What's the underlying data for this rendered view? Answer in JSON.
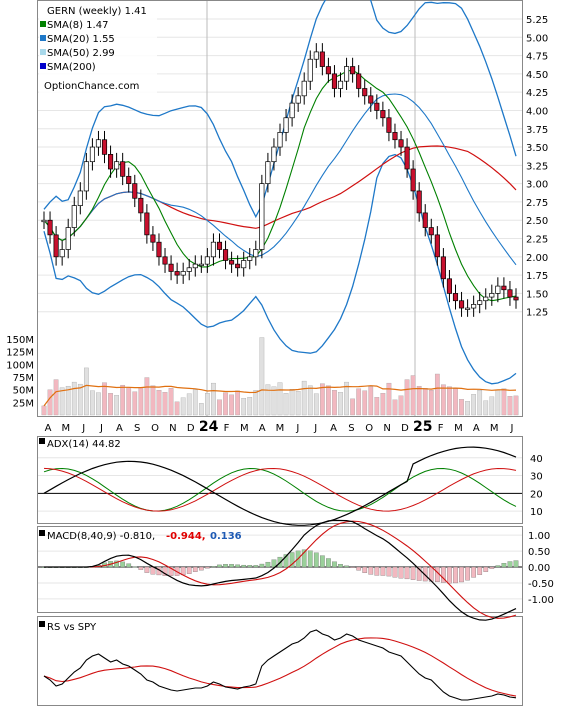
{
  "chart_data": {
    "type": "stock-technical",
    "main": {
      "legend": [
        {
          "label": "GERN (weekly) 1.41",
          "color": ""
        },
        {
          "label": "SMA(8) 1.47",
          "color": "#008000"
        },
        {
          "label": "SMA(20) 1.55",
          "color": "#1e78c8"
        },
        {
          "label": "SMA(50) 2.99",
          "color": "#a8d8ea"
        },
        {
          "label": "SMA(200)",
          "color": "#0000cc"
        }
      ],
      "watermark": "OptionChance.com",
      "y_ticks": [
        "5.25",
        "5.00",
        "4.75",
        "4.50",
        "4.25",
        "4.00",
        "3.75",
        "3.50",
        "3.25",
        "3.00",
        "2.75",
        "2.50",
        "2.25",
        "2.00",
        "1.75",
        "1.50",
        "1.25"
      ],
      "ylim": [
        1.0,
        5.4
      ],
      "series": [
        {
          "name": "Close",
          "values": [
            2.5,
            2.3,
            2.0,
            2.1,
            2.4,
            2.7,
            2.9,
            3.3,
            3.5,
            3.6,
            3.4,
            3.2,
            3.3,
            3.1,
            3.0,
            2.8,
            2.6,
            2.3,
            2.2,
            2.0,
            1.9,
            1.8,
            1.75,
            1.8,
            1.85,
            1.9,
            1.9,
            2.0,
            2.2,
            2.1,
            1.95,
            1.9,
            1.85,
            1.95,
            2.0,
            2.1,
            3.0,
            3.3,
            3.5,
            3.7,
            3.9,
            4.1,
            4.2,
            4.4,
            4.7,
            4.8,
            4.6,
            4.5,
            4.3,
            4.4,
            4.6,
            4.5,
            4.3,
            4.2,
            4.1,
            4.0,
            3.9,
            3.7,
            3.6,
            3.5,
            3.2,
            2.9,
            2.6,
            2.4,
            2.3,
            2.0,
            1.7,
            1.5,
            1.4,
            1.3,
            1.3,
            1.35,
            1.4,
            1.45,
            1.5,
            1.6,
            1.55,
            1.45,
            1.41
          ]
        }
      ]
    },
    "volume": {
      "y_ticks": [
        "150M",
        "125M",
        "100M",
        "75M",
        "50M",
        "25M"
      ],
      "x_labels": [
        "A",
        "M",
        "J",
        "J",
        "A",
        "S",
        "O",
        "N",
        "D",
        "24",
        "F",
        "M",
        "A",
        "M",
        "J",
        "J",
        "A",
        "S",
        "O",
        "N",
        "D",
        "25",
        "F",
        "M",
        "A",
        "M",
        "J"
      ]
    },
    "adx": {
      "label": "ADX(14) 44.82",
      "y_ticks": [
        "40",
        "30",
        "20",
        "10"
      ],
      "ylim": [
        5,
        50
      ]
    },
    "macd": {
      "label": "MACD(8,40,9) -0.810,",
      "signal_label": "-0.944,",
      "signal_color": "#e00000",
      "hist_label": "0.136",
      "hist_color": "#1e5ab4",
      "y_ticks": [
        "1.00",
        "0.50",
        "0.00",
        "-0.50",
        "-1.00"
      ],
      "ylim": [
        -1.35,
        1.1
      ]
    },
    "rs": {
      "label": "RS vs SPY"
    }
  }
}
